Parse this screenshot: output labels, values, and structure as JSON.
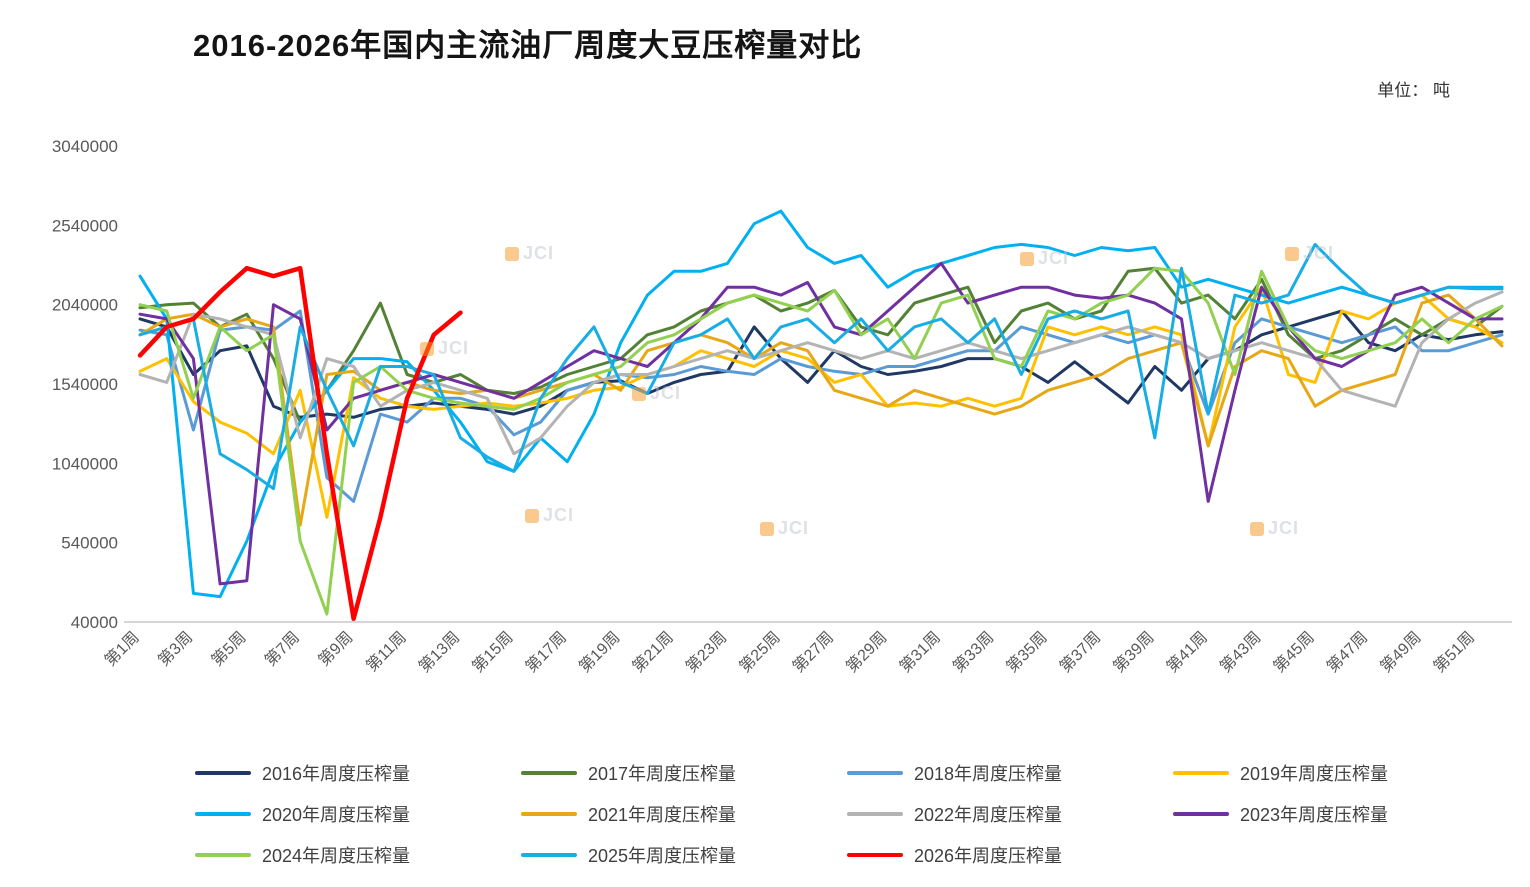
{
  "chart_data": {
    "type": "line",
    "title": "2016-2026年国内主流油厂周度大豆压榨量对比",
    "unit_label": "单位： 吨",
    "weeks": 52,
    "ylim": [
      40000,
      3040000
    ],
    "y_ticks": [
      40000,
      540000,
      1040000,
      1540000,
      2040000,
      2540000,
      3040000
    ],
    "x_tick_labels": [
      "第1周",
      "第3周",
      "第5周",
      "第7周",
      "第9周",
      "第11周",
      "第13周",
      "第15周",
      "第17周",
      "第19周",
      "第21周",
      "第23周",
      "第25周",
      "第27周",
      "第29周",
      "第31周",
      "第33周",
      "第35周",
      "第37周",
      "第39周",
      "第41周",
      "第43周",
      "第45周",
      "第47周",
      "第49周",
      "第51周"
    ],
    "grid": "off",
    "legend_position": "bottom",
    "series": [
      {
        "name": "2016年周度压榨量",
        "color": "#1F3864",
        "width": 3,
        "values": [
          1950000,
          1900000,
          1600000,
          1750000,
          1780000,
          1400000,
          1330000,
          1350000,
          1330000,
          1380000,
          1400000,
          1420000,
          1400000,
          1380000,
          1350000,
          1400000,
          1500000,
          1550000,
          1560000,
          1480000,
          1550000,
          1600000,
          1620000,
          1900000,
          1700000,
          1550000,
          1750000,
          1650000,
          1600000,
          1620000,
          1650000,
          1700000,
          1700000,
          1650000,
          1550000,
          1680000,
          1550000,
          1420000,
          1650000,
          1500000,
          1700000,
          1750000,
          1850000,
          1900000,
          1950000,
          2000000,
          1800000,
          1750000,
          1850000,
          1820000,
          1850000,
          1870000
        ]
      },
      {
        "name": "2017年周度压榨量",
        "color": "#538135",
        "width": 3,
        "values": [
          2020000,
          2040000,
          2050000,
          1900000,
          1980000,
          1700000,
          1300000,
          1500000,
          1750000,
          2050000,
          1600000,
          1550000,
          1600000,
          1500000,
          1480000,
          1520000,
          1600000,
          1650000,
          1700000,
          1850000,
          1900000,
          2000000,
          2050000,
          2100000,
          2000000,
          2050000,
          2130000,
          1900000,
          1850000,
          2050000,
          2100000,
          2150000,
          1800000,
          2000000,
          2050000,
          1950000,
          2000000,
          2250000,
          2270000,
          2050000,
          2100000,
          1950000,
          2200000,
          1850000,
          1700000,
          1750000,
          1850000,
          1950000,
          1850000,
          1950000,
          1900000,
          2030000
        ]
      },
      {
        "name": "2018年周度压榨量",
        "color": "#5B9BD5",
        "width": 3,
        "values": [
          1880000,
          1850000,
          1250000,
          1880000,
          1900000,
          1880000,
          2000000,
          950000,
          800000,
          1350000,
          1300000,
          1450000,
          1450000,
          1400000,
          1220000,
          1300000,
          1500000,
          1550000,
          1600000,
          1580000,
          1600000,
          1650000,
          1620000,
          1600000,
          1700000,
          1650000,
          1620000,
          1600000,
          1650000,
          1650000,
          1700000,
          1750000,
          1750000,
          1900000,
          1850000,
          1800000,
          1850000,
          1800000,
          1850000,
          1800000,
          1350000,
          1800000,
          1950000,
          1900000,
          1850000,
          1800000,
          1850000,
          1900000,
          1750000,
          1750000,
          1800000,
          1850000
        ]
      },
      {
        "name": "2019年周度压榨量",
        "color": "#FFC000",
        "width": 3,
        "values": [
          1620000,
          1700000,
          1430000,
          1300000,
          1230000,
          1100000,
          1500000,
          700000,
          1580000,
          1450000,
          1400000,
          1380000,
          1400000,
          1420000,
          1400000,
          1420000,
          1450000,
          1500000,
          1520000,
          1600000,
          1650000,
          1750000,
          1700000,
          1650000,
          1750000,
          1700000,
          1550000,
          1600000,
          1400000,
          1420000,
          1400000,
          1450000,
          1400000,
          1450000,
          1900000,
          1850000,
          1900000,
          1850000,
          1900000,
          1850000,
          1150000,
          1900000,
          2150000,
          1600000,
          1550000,
          2000000,
          1950000,
          2050000,
          2100000,
          1950000,
          1900000,
          1800000
        ]
      },
      {
        "name": "2020年周度压榨量",
        "color": "#00B0F0",
        "width": 3,
        "values": [
          2220000,
          1950000,
          220000,
          200000,
          550000,
          1000000,
          1300000,
          1500000,
          1700000,
          1700000,
          1680000,
          1500000,
          1300000,
          1050000,
          990000,
          1200000,
          1050000,
          1350000,
          1800000,
          2100000,
          2250000,
          2250000,
          2300000,
          2550000,
          2630000,
          2400000,
          2300000,
          2350000,
          2150000,
          2250000,
          2300000,
          2350000,
          2400000,
          2420000,
          2400000,
          2350000,
          2400000,
          2380000,
          2400000,
          2150000,
          2200000,
          2150000,
          2100000,
          2050000,
          2100000,
          2150000,
          2100000,
          2050000,
          2100000,
          2150000,
          2150000,
          2150000
        ]
      },
      {
        "name": "2021年周度压榨量",
        "color": "#E6A817",
        "width": 3,
        "values": [
          1850000,
          1950000,
          1980000,
          1900000,
          1950000,
          1900000,
          650000,
          1600000,
          1620000,
          1500000,
          1550000,
          1500000,
          1480000,
          1500000,
          1450000,
          1500000,
          1550000,
          1600000,
          1500000,
          1750000,
          1800000,
          1850000,
          1800000,
          1700000,
          1800000,
          1750000,
          1500000,
          1450000,
          1400000,
          1500000,
          1450000,
          1400000,
          1350000,
          1400000,
          1500000,
          1550000,
          1600000,
          1700000,
          1750000,
          1800000,
          1150000,
          1650000,
          1750000,
          1700000,
          1400000,
          1500000,
          1550000,
          1600000,
          2050000,
          2100000,
          1950000,
          1780000
        ]
      },
      {
        "name": "2022年周度压榨量",
        "color": "#B3B3B3",
        "width": 3,
        "values": [
          1600000,
          1550000,
          1980000,
          1950000,
          1900000,
          1850000,
          1200000,
          1700000,
          1650000,
          1400000,
          1500000,
          1550000,
          1500000,
          1450000,
          1100000,
          1200000,
          1400000,
          1550000,
          1600000,
          1600000,
          1650000,
          1700000,
          1750000,
          1700000,
          1750000,
          1800000,
          1750000,
          1700000,
          1750000,
          1700000,
          1750000,
          1800000,
          1750000,
          1700000,
          1750000,
          1800000,
          1850000,
          1900000,
          1850000,
          1800000,
          1700000,
          1750000,
          1800000,
          1750000,
          1700000,
          1500000,
          1450000,
          1400000,
          1800000,
          1950000,
          2050000,
          2120000
        ]
      },
      {
        "name": "2023年周度压榨量",
        "color": "#7030A0",
        "width": 3,
        "values": [
          1980000,
          1950000,
          1700000,
          280000,
          300000,
          2040000,
          1950000,
          1250000,
          1450000,
          1500000,
          1550000,
          1600000,
          1550000,
          1500000,
          1450000,
          1550000,
          1650000,
          1750000,
          1700000,
          1650000,
          1800000,
          1950000,
          2150000,
          2150000,
          2100000,
          2180000,
          1900000,
          1850000,
          2000000,
          2150000,
          2300000,
          2050000,
          2100000,
          2150000,
          2150000,
          2100000,
          2080000,
          2100000,
          2050000,
          1950000,
          800000,
          1500000,
          2150000,
          1900000,
          1700000,
          1650000,
          1750000,
          2100000,
          2150000,
          2050000,
          1950000,
          1950000
        ]
      },
      {
        "name": "2024年周度压榨量",
        "color": "#92D050",
        "width": 3,
        "values": [
          2040000,
          2000000,
          1450000,
          1900000,
          1750000,
          1850000,
          550000,
          90000,
          1550000,
          1650000,
          1500000,
          1450000,
          1420000,
          1400000,
          1380000,
          1450000,
          1550000,
          1600000,
          1650000,
          1800000,
          1850000,
          1950000,
          2050000,
          2100000,
          2050000,
          2000000,
          2130000,
          1850000,
          1950000,
          1700000,
          2050000,
          2100000,
          1700000,
          1650000,
          2000000,
          1950000,
          2050000,
          2100000,
          2270000,
          2250000,
          2050000,
          1600000,
          2250000,
          1900000,
          1750000,
          1700000,
          1750000,
          1800000,
          1950000,
          1800000,
          1950000,
          2030000
        ]
      },
      {
        "name": "2025年周度压榨量",
        "color": "#19ADE4",
        "width": 3,
        "values": [
          1850000,
          1900000,
          1950000,
          1100000,
          1000000,
          880000,
          1900000,
          1500000,
          1150000,
          1650000,
          1650000,
          1600000,
          1200000,
          1080000,
          990000,
          1450000,
          1700000,
          1900000,
          1550000,
          1480000,
          1800000,
          1850000,
          1950000,
          1700000,
          1900000,
          1950000,
          1800000,
          1950000,
          1750000,
          1900000,
          1950000,
          1800000,
          1950000,
          1600000,
          1950000,
          2000000,
          1950000,
          2000000,
          1200000,
          2270000,
          1350000,
          2100000,
          2050000,
          2100000,
          2420000,
          2250000,
          2100000,
          2050000,
          2100000,
          2150000,
          2140000,
          2140000
        ]
      },
      {
        "name": "2026年周度压榨量",
        "color": "#FF0000",
        "width": 4.5,
        "values": [
          1720000,
          1900000,
          1950000,
          2120000,
          2270000,
          2220000,
          2270000,
          1100000,
          60000,
          700000,
          1450000,
          1850000,
          1990000
        ]
      }
    ]
  },
  "watermark": {
    "text": "JCI",
    "icon_color": "#F7941D"
  }
}
